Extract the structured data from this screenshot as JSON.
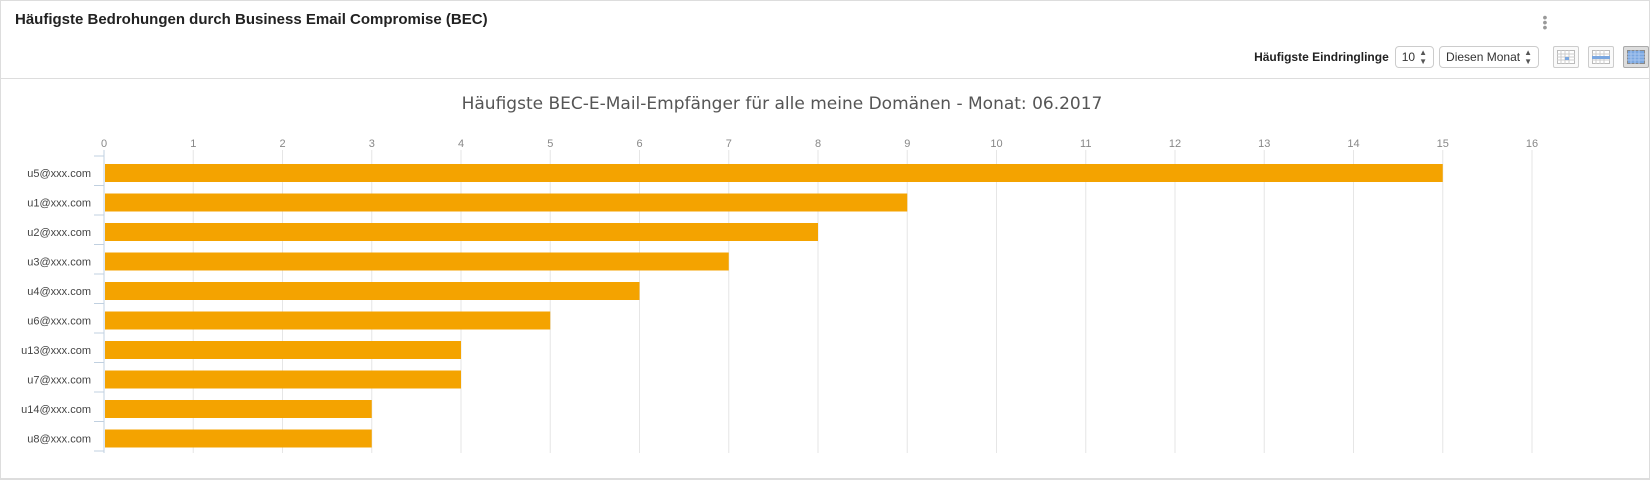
{
  "header": {
    "title": "Häufigste Bedrohungen durch Business Email Compromise (BEC)",
    "menu_icon": "kebab-icon"
  },
  "toolbar": {
    "label": "Häufigste Eindringlinge",
    "count": "10",
    "period": "Diesen Monat",
    "views": [
      "calendar-day-icon",
      "calendar-week-icon",
      "calendar-month-icon"
    ]
  },
  "chart_data": {
    "type": "bar",
    "orientation": "horizontal",
    "title": "Häufigste BEC-E-Mail-Empfänger für alle meine Domänen - Monat: 06.2017",
    "categories": [
      "u5@xxx.com",
      "u1@xxx.com",
      "u2@xxx.com",
      "u3@xxx.com",
      "u4@xxx.com",
      "u6@xxx.com",
      "u13@xxx.com",
      "u7@xxx.com",
      "u14@xxx.com",
      "u8@xxx.com"
    ],
    "values": [
      15,
      9,
      8,
      7,
      6,
      5,
      4,
      4,
      3,
      3
    ],
    "xlim": [
      0,
      16
    ],
    "ticks": [
      "0",
      "1",
      "2",
      "3",
      "4",
      "5",
      "6",
      "7",
      "8",
      "9",
      "10",
      "11",
      "12",
      "13",
      "14",
      "15",
      "16"
    ],
    "grid": true,
    "color": "#F4A300"
  }
}
